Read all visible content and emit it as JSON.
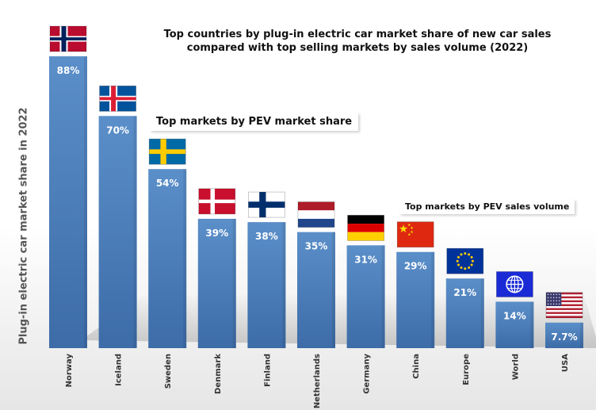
{
  "colors": {
    "bar_top": "#5b8fc9",
    "bar_bottom": "#3d6ca8",
    "value_label": "#ffffff",
    "axis_text": "#333333"
  },
  "callouts": {
    "share": "Top markets by PEV market share",
    "volume": "Top markets by PEV sales volume"
  },
  "chart_data": {
    "type": "bar",
    "title": "Top countries by plug-in electric car market share of new car sales compared with top selling markets by sales volume (2022)",
    "title_lines": [
      "Top countries by plug-in electric car market share of new car sales",
      "compared with top selling markets by sales volume (2022)"
    ],
    "xlabel": "",
    "ylabel": "Plug-in electric car market share in 2022",
    "ylim": [
      0,
      100
    ],
    "grid": false,
    "categories": [
      "Norway",
      "Iceland",
      "Sweden",
      "Denmark",
      "Finland",
      "Netherlands",
      "Germany",
      "China",
      "Europe",
      "World",
      "USA"
    ],
    "values": [
      88,
      70,
      54,
      39,
      38,
      35,
      31,
      29,
      21,
      14,
      7.7
    ],
    "value_labels": [
      "88%",
      "70%",
      "54%",
      "39%",
      "38%",
      "35%",
      "31%",
      "29%",
      "21%",
      "14%",
      "7.7%"
    ],
    "flags": [
      "norway-flag",
      "iceland-flag",
      "sweden-flag",
      "denmark-flag",
      "finland-flag",
      "netherlands-flag",
      "germany-flag",
      "china-flag",
      "eu-flag",
      "un-flag",
      "usa-flag"
    ]
  }
}
